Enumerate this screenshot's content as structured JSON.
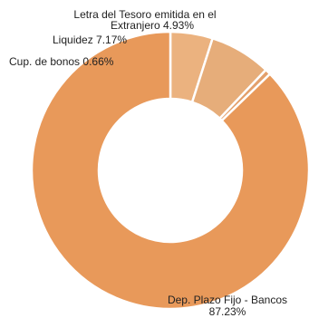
{
  "chart_data": {
    "type": "pie",
    "donut": true,
    "slices": [
      {
        "label": "Letra del Tesoro emitida en el Extranjero",
        "value": 4.93,
        "display": "4.93%",
        "color": "#ebb27f"
      },
      {
        "label": "Liquidez",
        "value": 7.17,
        "display": "7.17%",
        "color": "#e6ad7a"
      },
      {
        "label": "Cup. de bonos",
        "value": 0.66,
        "display": "0.66%",
        "color": "#e3a06c"
      },
      {
        "label": "Dep. Plazo Fijo - Bancos",
        "value": 87.23,
        "display": "87.23%",
        "color": "#e8995a"
      }
    ],
    "legend": "none"
  },
  "labels": {
    "slice_0_line1": "Letra del Tesoro emitida en el",
    "slice_0_line2": "Extranjero 4.93%",
    "slice_1": "Liquidez 7.17%",
    "slice_2": "Cup. de bonos 0.66%",
    "slice_3_line1": "Dep. Plazo Fijo - Bancos",
    "slice_3_line2": "87.23%"
  }
}
